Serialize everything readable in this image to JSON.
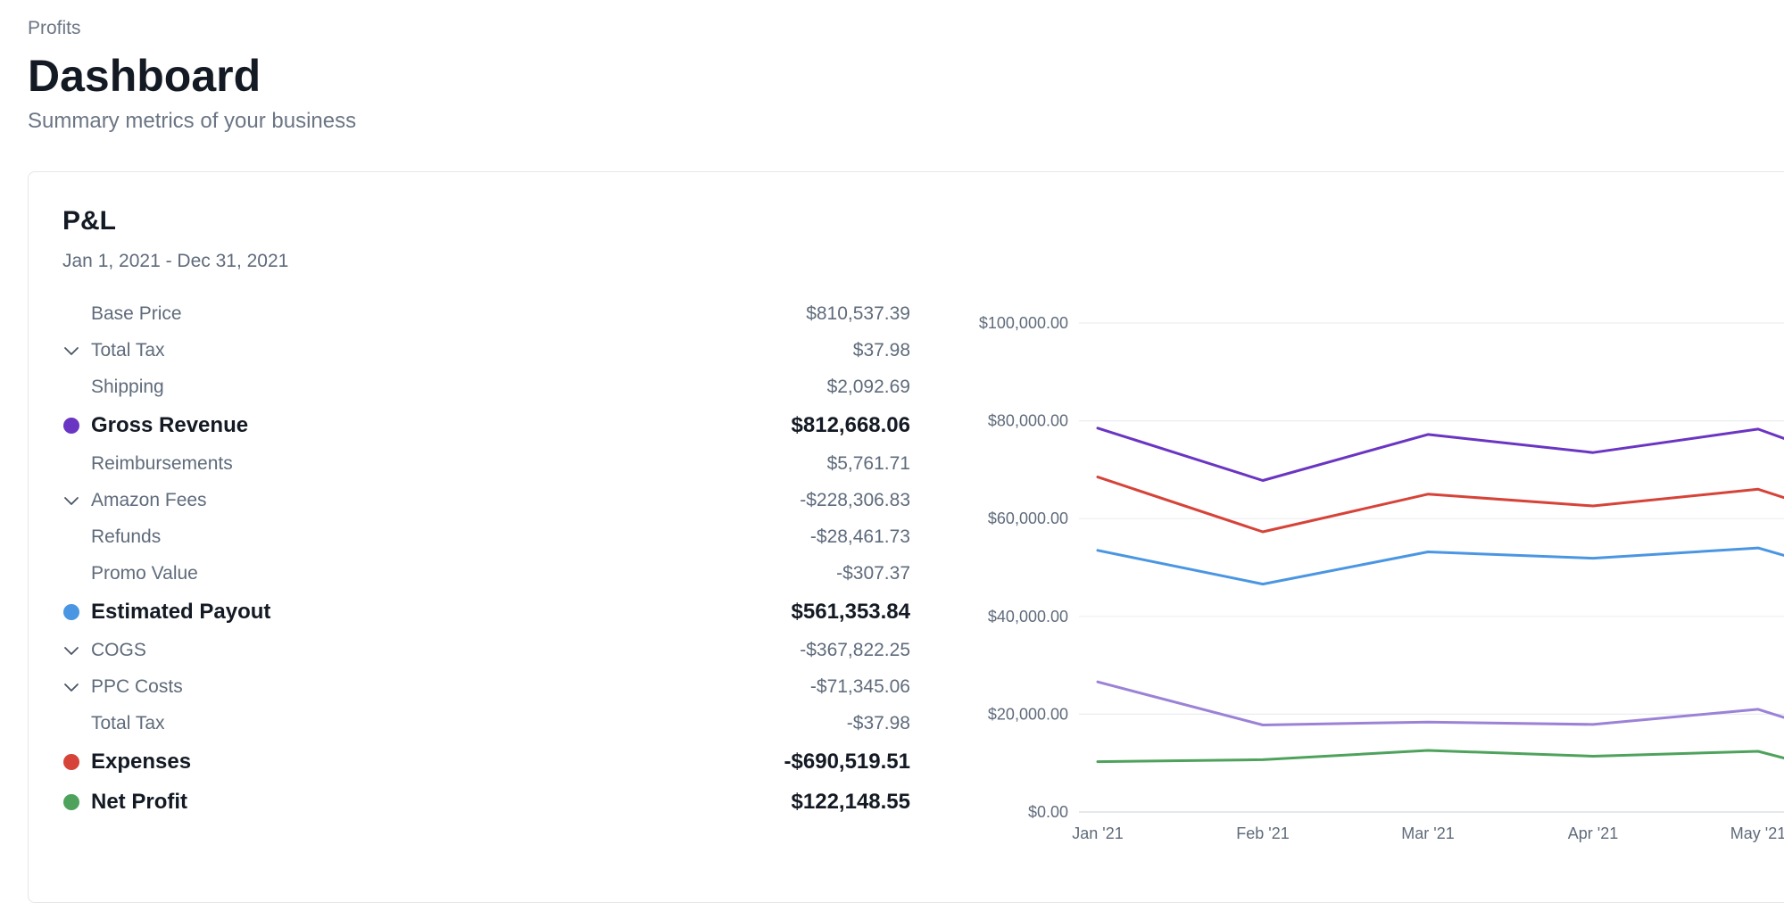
{
  "breadcrumb": "Profits",
  "page": {
    "title": "Dashboard",
    "subtitle": "Summary metrics of your business"
  },
  "card": {
    "title": "P&L",
    "date_range": "Jan 1, 2021 - Dec 31, 2021"
  },
  "pl_rows": [
    {
      "label": "Base Price",
      "value": "$810,537.39",
      "kind": "line",
      "marker": "none"
    },
    {
      "label": "Total Tax",
      "value": "$37.98",
      "kind": "line",
      "marker": "chevron"
    },
    {
      "label": "Shipping",
      "value": "$2,092.69",
      "kind": "line",
      "marker": "none"
    },
    {
      "label": "Gross Revenue",
      "value": "$812,668.06",
      "kind": "total",
      "marker": "dot",
      "color": "#6a35c2"
    },
    {
      "label": "Reimbursements",
      "value": "$5,761.71",
      "kind": "line",
      "marker": "none"
    },
    {
      "label": "Amazon Fees",
      "value": "-$228,306.83",
      "kind": "line",
      "marker": "chevron"
    },
    {
      "label": "Refunds",
      "value": "-$28,461.73",
      "kind": "line",
      "marker": "none"
    },
    {
      "label": "Promo Value",
      "value": "-$307.37",
      "kind": "line",
      "marker": "none"
    },
    {
      "label": "Estimated Payout",
      "value": "$561,353.84",
      "kind": "total",
      "marker": "dot",
      "color": "#4a96e2"
    },
    {
      "label": "COGS",
      "value": "-$367,822.25",
      "kind": "line",
      "marker": "chevron"
    },
    {
      "label": "PPC Costs",
      "value": "-$71,345.06",
      "kind": "line",
      "marker": "chevron"
    },
    {
      "label": "Total Tax",
      "value": "-$37.98",
      "kind": "line",
      "marker": "none"
    },
    {
      "label": "Expenses",
      "value": "-$690,519.51",
      "kind": "total",
      "marker": "dot",
      "color": "#d64339"
    },
    {
      "label": "Net Profit",
      "value": "$122,148.55",
      "kind": "total",
      "marker": "dot",
      "color": "#4ea25c"
    }
  ],
  "chart_data": {
    "type": "line",
    "x": [
      "Jan '21",
      "Feb '21",
      "Mar '21",
      "Apr '21",
      "May '21"
    ],
    "ylim": [
      0,
      100000
    ],
    "yticks": [
      "$0.00",
      "$20,000.00",
      "$40,000.00",
      "$60,000.00",
      "$80,000.00",
      "$100,000.00"
    ],
    "grid": true,
    "series": [
      {
        "color": "#6a35c2",
        "values": [
          78500,
          67800,
          77200,
          73500,
          78300
        ]
      },
      {
        "color": "#d64339",
        "values": [
          68500,
          57300,
          65000,
          62600,
          66000
        ]
      },
      {
        "color": "#4a96e2",
        "values": [
          53500,
          46600,
          53200,
          51900,
          54000
        ]
      },
      {
        "color": "#9b82d6",
        "values": [
          26600,
          17800,
          18400,
          17900,
          21000
        ]
      },
      {
        "color": "#4ea25c",
        "values": [
          10300,
          10700,
          12600,
          11400,
          12400
        ]
      }
    ]
  }
}
